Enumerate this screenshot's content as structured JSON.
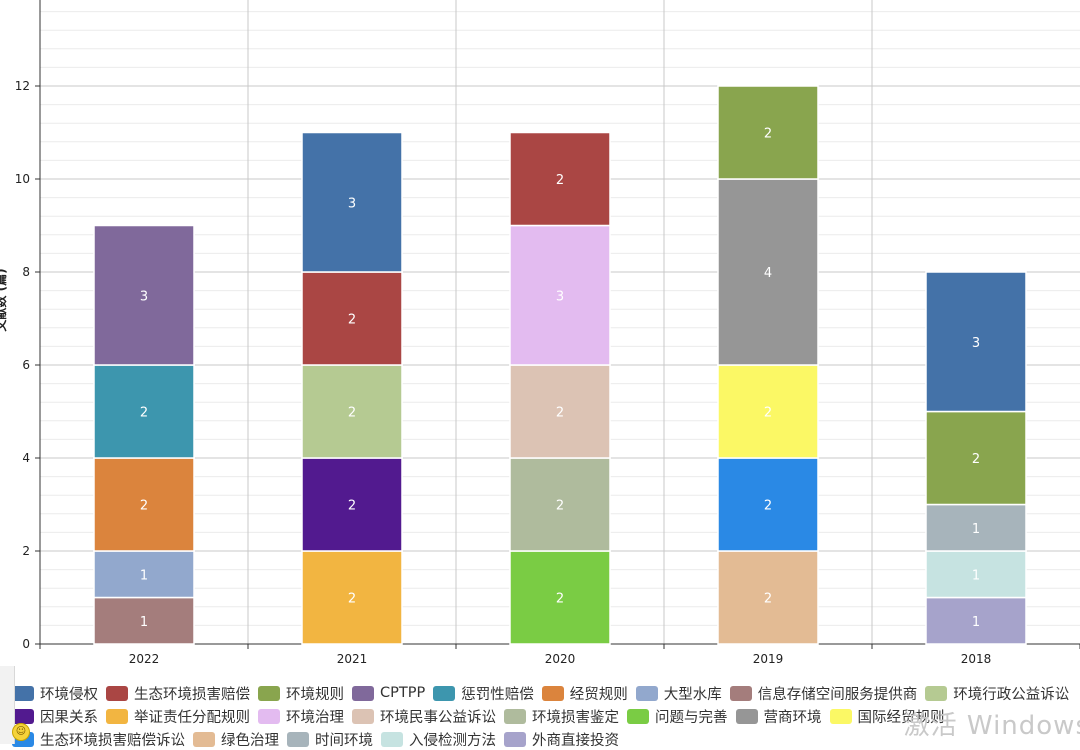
{
  "chart_data": {
    "type": "bar",
    "stacked": true,
    "categories": [
      "2022",
      "2021",
      "2020",
      "2019",
      "2018"
    ],
    "ylim": [
      0,
      14
    ],
    "yticks": [
      0,
      2,
      4,
      6,
      8,
      10,
      12
    ],
    "ylabel": "文献数 (篇)",
    "grid": true,
    "legend_position": "bottom",
    "series": [
      {
        "name": "环境侵权",
        "color": "#4472A8",
        "values": [
          0,
          3,
          0,
          0,
          3
        ]
      },
      {
        "name": "生态环境损害赔偿",
        "color": "#AA4644",
        "values": [
          0,
          2,
          2,
          0,
          0
        ]
      },
      {
        "name": "环境规则",
        "color": "#89A54E",
        "values": [
          0,
          0,
          0,
          2,
          2
        ]
      },
      {
        "name": "CPTPP",
        "color": "#80699B",
        "values": [
          3,
          0,
          0,
          0,
          0
        ]
      },
      {
        "name": "惩罚性赔偿",
        "color": "#3D96AE",
        "values": [
          2,
          0,
          0,
          0,
          0
        ]
      },
      {
        "name": "经贸规则",
        "color": "#DB843D",
        "values": [
          2,
          0,
          0,
          0,
          0
        ]
      },
      {
        "name": "大型水库",
        "color": "#92A8CD",
        "values": [
          1,
          0,
          0,
          0,
          0
        ]
      },
      {
        "name": "信息存储空间服务提供商",
        "color": "#A47D7C",
        "values": [
          1,
          0,
          0,
          0,
          0
        ]
      },
      {
        "name": "环境行政公益诉讼",
        "color": "#B5CA92",
        "values": [
          0,
          2,
          0,
          0,
          0
        ]
      },
      {
        "name": "因果关系",
        "color": "#521A8F",
        "values": [
          0,
          2,
          0,
          0,
          0
        ]
      },
      {
        "name": "举证责任分配规则",
        "color": "#F2B541",
        "values": [
          0,
          2,
          0,
          0,
          0
        ]
      },
      {
        "name": "环境治理",
        "color": "#E3BBF0",
        "values": [
          0,
          0,
          3,
          0,
          0
        ]
      },
      {
        "name": "环境民事公益诉讼",
        "color": "#DCC3B4",
        "values": [
          0,
          0,
          2,
          0,
          0
        ]
      },
      {
        "name": "环境损害鉴定",
        "color": "#AFBB9D",
        "values": [
          0,
          0,
          2,
          0,
          0
        ]
      },
      {
        "name": "问题与完善",
        "color": "#7ACC44",
        "values": [
          0,
          0,
          2,
          0,
          0
        ]
      },
      {
        "name": "营商环境",
        "color": "#969696",
        "values": [
          0,
          0,
          0,
          4,
          0
        ]
      },
      {
        "name": "国际经贸规则",
        "color": "#FBF865",
        "values": [
          0,
          0,
          0,
          2,
          0
        ]
      },
      {
        "name": "生态环境损害赔偿诉讼",
        "color": "#2A89E5",
        "values": [
          0,
          0,
          0,
          2,
          0
        ]
      },
      {
        "name": "绿色治理",
        "color": "#E3BB94",
        "values": [
          0,
          0,
          0,
          2,
          0
        ]
      },
      {
        "name": "时间环境",
        "color": "#A7B4BB",
        "values": [
          0,
          0,
          0,
          0,
          1
        ]
      },
      {
        "name": "入侵检测方法",
        "color": "#C6E3E1",
        "values": [
          0,
          0,
          0,
          0,
          1
        ]
      },
      {
        "name": "外商直接投资",
        "color": "#A6A3CB",
        "values": [
          0,
          0,
          0,
          0,
          1
        ]
      }
    ],
    "stack_order": [
      [
        "信息存储空间服务提供商",
        "大型水库",
        "经贸规则",
        "惩罚性赔偿",
        "CPTPP"
      ],
      [
        "举证责任分配规则",
        "因果关系",
        "环境行政公益诉讼",
        "生态环境损害赔偿",
        "环境侵权"
      ],
      [
        "问题与完善",
        "环境损害鉴定",
        "环境民事公益诉讼",
        "环境治理",
        "生态环境损害赔偿"
      ],
      [
        "绿色治理",
        "生态环境损害赔偿诉讼",
        "国际经贸规则",
        "营商环境",
        "环境规则"
      ],
      [
        "外商直接投资",
        "入侵检测方法",
        "时间环境",
        "环境规则",
        "环境侵权"
      ]
    ]
  },
  "watermark": "激活 Windows"
}
